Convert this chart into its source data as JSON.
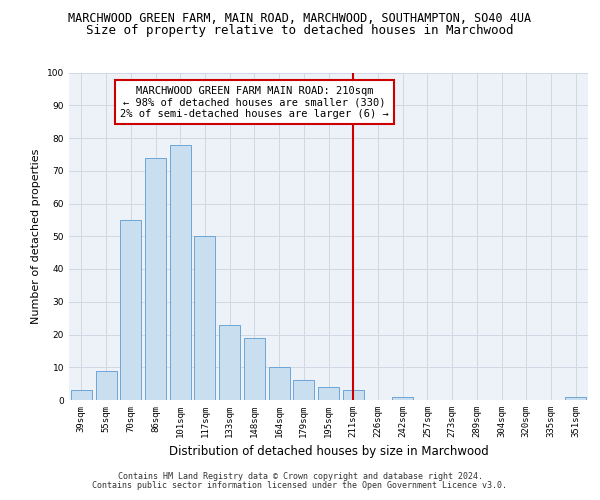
{
  "title_line1": "MARCHWOOD GREEN FARM, MAIN ROAD, MARCHWOOD, SOUTHAMPTON, SO40 4UA",
  "title_line2": "Size of property relative to detached houses in Marchwood",
  "xlabel": "Distribution of detached houses by size in Marchwood",
  "ylabel": "Number of detached properties",
  "categories": [
    "39sqm",
    "55sqm",
    "70sqm",
    "86sqm",
    "101sqm",
    "117sqm",
    "133sqm",
    "148sqm",
    "164sqm",
    "179sqm",
    "195sqm",
    "211sqm",
    "226sqm",
    "242sqm",
    "257sqm",
    "273sqm",
    "289sqm",
    "304sqm",
    "320sqm",
    "335sqm",
    "351sqm"
  ],
  "values": [
    3,
    9,
    55,
    74,
    78,
    50,
    23,
    19,
    10,
    6,
    4,
    3,
    0,
    1,
    0,
    0,
    0,
    0,
    0,
    0,
    1
  ],
  "bar_color": "#c9dff0",
  "bar_edge_color": "#5b9bd5",
  "vline_index": 11,
  "vline_color": "#cc0000",
  "annotation_line1": "MARCHWOOD GREEN FARM MAIN ROAD: 210sqm",
  "annotation_line2": "← 98% of detached houses are smaller (330)",
  "annotation_line3": "2% of semi-detached houses are larger (6) →",
  "annotation_box_color": "#ffffff",
  "annotation_box_edge_color": "#cc0000",
  "ylim": [
    0,
    100
  ],
  "yticks": [
    0,
    10,
    20,
    30,
    40,
    50,
    60,
    70,
    80,
    90,
    100
  ],
  "grid_color": "#d0d8e4",
  "background_color": "#edf2f8",
  "footer_line1": "Contains HM Land Registry data © Crown copyright and database right 2024.",
  "footer_line2": "Contains public sector information licensed under the Open Government Licence v3.0.",
  "title_fontsize": 8.5,
  "subtitle_fontsize": 9,
  "tick_fontsize": 6.5,
  "ylabel_fontsize": 8,
  "xlabel_fontsize": 8.5,
  "annotation_fontsize": 7.5,
  "footer_fontsize": 6
}
